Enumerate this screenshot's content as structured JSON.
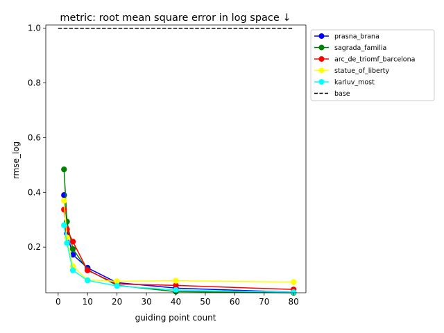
{
  "chart_data": {
    "type": "line",
    "title": "metric: root mean square error in log space ↓",
    "xlabel": "guiding point count",
    "ylabel": "rmse_log",
    "xlim": [
      -4.2,
      84.2
    ],
    "ylim": [
      0.033,
      1.012
    ],
    "xticks": [
      0,
      10,
      20,
      30,
      40,
      50,
      60,
      70,
      80
    ],
    "xtick_labels": [
      "0",
      "10",
      "20",
      "30",
      "40",
      "50",
      "60",
      "70",
      "80"
    ],
    "yticks": [
      0.2,
      0.4,
      0.6,
      0.8,
      1.0
    ],
    "ytick_labels": [
      "0.2",
      "0.4",
      "0.6",
      "0.8",
      "1.0"
    ],
    "grid": false,
    "legend_position": "outside-right-top",
    "series": [
      {
        "name": "prasna_brana",
        "color": "#0000ff",
        "x": [
          2,
          3,
          5,
          10,
          20,
          40,
          80
        ],
        "y": [
          0.39,
          0.25,
          0.172,
          0.124,
          0.07,
          0.05,
          0.035
        ]
      },
      {
        "name": "sagrada_familia",
        "color": "#008000",
        "x": [
          2,
          3,
          5,
          10,
          20,
          40,
          80
        ],
        "y": [
          0.484,
          0.293,
          0.193,
          0.117,
          0.06,
          0.037,
          0.033
        ]
      },
      {
        "name": "arc_de_triomf_barcelona",
        "color": "#ff0000",
        "x": [
          2,
          3,
          5,
          10,
          20,
          40,
          80
        ],
        "y": [
          0.337,
          0.265,
          0.22,
          0.115,
          0.065,
          0.06,
          0.045
        ]
      },
      {
        "name": "statue_of_liberty",
        "color": "#ffff00",
        "x": [
          2,
          3,
          5,
          10,
          20,
          40,
          80
        ],
        "y": [
          0.37,
          0.235,
          0.13,
          0.08,
          0.075,
          0.077,
          0.072
        ]
      },
      {
        "name": "karluv_most",
        "color": "#00ffff",
        "x": [
          2,
          3,
          5,
          10,
          20,
          40,
          80
        ],
        "y": [
          0.28,
          0.215,
          0.115,
          0.078,
          0.058,
          0.043,
          0.035
        ]
      }
    ],
    "baseline": {
      "name": "base",
      "color": "#000000",
      "y": 1.0,
      "x_range": [
        0,
        80
      ],
      "style": "dashed"
    }
  }
}
